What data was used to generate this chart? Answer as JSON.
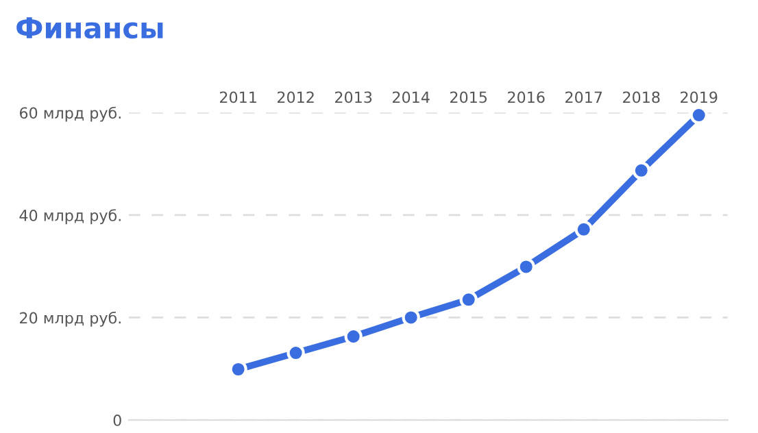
{
  "chart_data": {
    "type": "line",
    "title": "Финансы",
    "categories": [
      "2011",
      "2012",
      "2013",
      "2014",
      "2015",
      "2016",
      "2017",
      "2018",
      "2019"
    ],
    "series": [
      {
        "color": "#3a6ee0",
        "values": [
          9.9,
          13.1,
          16.3,
          20.0,
          23.5,
          29.9,
          37.2,
          48.7,
          59.5
        ]
      }
    ],
    "ylim": [
      0,
      60
    ],
    "yticks": [
      {
        "value": 0,
        "label": "0"
      },
      {
        "value": 20,
        "label": "20 млрд руб."
      },
      {
        "value": 40,
        "label": "40 млрд руб."
      },
      {
        "value": 60,
        "label": "60 млрд руб."
      }
    ],
    "grid": "y",
    "marker": "circle",
    "line_style": "solid",
    "legend": false
  }
}
